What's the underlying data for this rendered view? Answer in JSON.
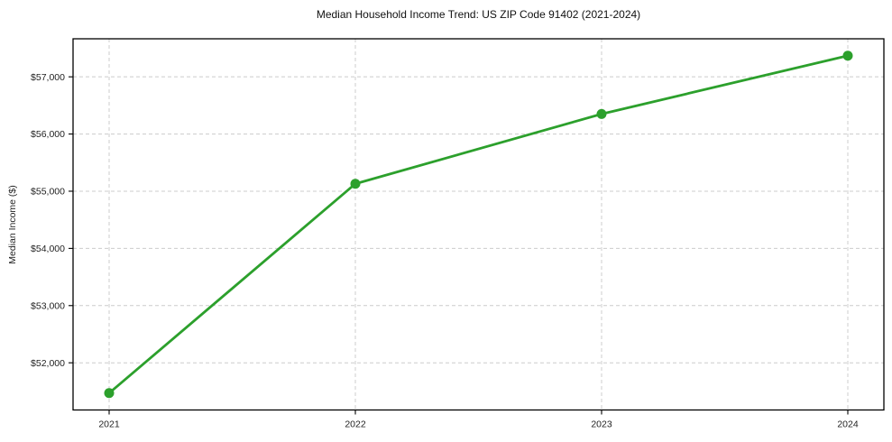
{
  "chart_data": {
    "type": "line",
    "title": "Median Household Income Trend: US ZIP Code 91402 (2021-2024)",
    "xlabel": "",
    "ylabel": "Median Income ($)",
    "categories": [
      "2021",
      "2022",
      "2023",
      "2024"
    ],
    "values": [
      51470,
      55130,
      56350,
      57370
    ],
    "y_ticks": [
      52000,
      53000,
      54000,
      55000,
      56000,
      57000
    ],
    "y_tick_labels": [
      "$52,000",
      "$53,000",
      "$54,000",
      "$55,000",
      "$56,000",
      "$57,000"
    ],
    "ylim": [
      51175,
      57665
    ],
    "grid": true,
    "grid_style": "dashed",
    "legend_position": "none",
    "colors": {
      "line": "#2ca02c",
      "marker": "#2ca02c",
      "grid": "#cccccc",
      "frame": "#000000",
      "tick_text": "#222222",
      "background": "#ffffff"
    }
  }
}
